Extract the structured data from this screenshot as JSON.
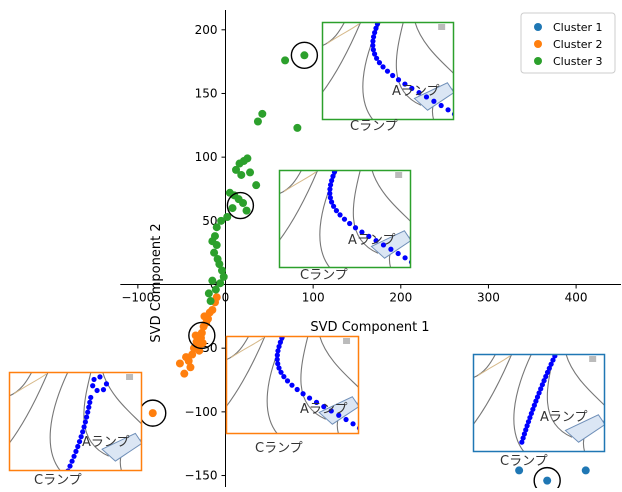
{
  "chart_data": {
    "type": "scatter",
    "xlabel": "SVD Component 1",
    "ylabel": "SVD Component 2",
    "xlim": [
      -120,
      445
    ],
    "ylim": [
      -160,
      212
    ],
    "x_ticks": [
      -100,
      0,
      100,
      200,
      300,
      400
    ],
    "y_ticks": [
      -150,
      -100,
      -50,
      0,
      50,
      100,
      150,
      200
    ],
    "x_tick_labels": [
      "−100",
      "0",
      "100",
      "200",
      "300",
      "400"
    ],
    "y_tick_labels": [
      "−150",
      "−100",
      "−50",
      "0",
      "50",
      "100",
      "150",
      "200"
    ],
    "grid": false,
    "legend_position": "top-right",
    "series": [
      {
        "name": "Cluster 1",
        "color": "#1f77b4",
        "points": [
          [
            367,
            -154
          ],
          [
            411,
            -146
          ],
          [
            335,
            -146
          ]
        ]
      },
      {
        "name": "Cluster 2",
        "color": "#ff7f0e",
        "points": [
          [
            -83,
            -101
          ],
          [
            -52,
            -62
          ],
          [
            -47,
            -70
          ],
          [
            -42,
            -60
          ],
          [
            -40,
            -65
          ],
          [
            -45,
            -57
          ],
          [
            -38,
            -55
          ],
          [
            -36,
            -50
          ],
          [
            -33,
            -45
          ],
          [
            -30,
            -48
          ],
          [
            -28,
            -42
          ],
          [
            -27,
            -38
          ],
          [
            -34,
            -40
          ],
          [
            -25,
            -33
          ],
          [
            -22,
            -30
          ],
          [
            -20,
            -27
          ],
          [
            -24,
            -25
          ],
          [
            -18,
            -22
          ],
          [
            -15,
            -20
          ],
          [
            -12,
            -14
          ],
          [
            -10,
            -10
          ],
          [
            -30,
            -52
          ],
          [
            -26,
            -46
          ]
        ]
      },
      {
        "name": "Cluster 3",
        "color": "#2ca02c",
        "points": [
          [
            90,
            180
          ],
          [
            68,
            176
          ],
          [
            42,
            134
          ],
          [
            37,
            128
          ],
          [
            82,
            123
          ],
          [
            16,
            95
          ],
          [
            21,
            97
          ],
          [
            25,
            99
          ],
          [
            12,
            90
          ],
          [
            18,
            86
          ],
          [
            28,
            88
          ],
          [
            35,
            78
          ],
          [
            5,
            72
          ],
          [
            10,
            70
          ],
          [
            15,
            67
          ],
          [
            20,
            64
          ],
          [
            24,
            58
          ],
          [
            8,
            60
          ],
          [
            2,
            53
          ],
          [
            -5,
            50
          ],
          [
            -10,
            45
          ],
          [
            -12,
            38
          ],
          [
            -15,
            34
          ],
          [
            -10,
            31
          ],
          [
            -13,
            25
          ],
          [
            -9,
            20
          ],
          [
            -7,
            16
          ],
          [
            -4,
            11
          ],
          [
            -2,
            6
          ],
          [
            -15,
            3
          ],
          [
            -19,
            -7
          ],
          [
            -17,
            -13
          ],
          [
            -11,
            -4
          ],
          [
            -6,
            1
          ]
        ]
      }
    ],
    "highlight_circles": [
      [
        90,
        180
      ],
      [
        17,
        62
      ],
      [
        -27,
        -40
      ],
      [
        -83,
        -101
      ],
      [
        367,
        -154
      ]
    ],
    "insets": [
      {
        "id": "inset-c3-top",
        "border": "#2ca02c",
        "label_a": "Aランプ",
        "label_c": "Cランプ"
      },
      {
        "id": "inset-c3-mid",
        "border": "#2ca02c",
        "label_a": "Aランプ",
        "label_c": "Cランプ"
      },
      {
        "id": "inset-c2-mid",
        "border": "#ff7f0e",
        "label_a": "Aランプ",
        "label_c": "Cランプ"
      },
      {
        "id": "inset-c2-left",
        "border": "#ff7f0e",
        "label_a": "Aランプ",
        "label_c": "Cランプ"
      },
      {
        "id": "inset-c1-right",
        "border": "#1f77b4",
        "label_a": "Aランプ",
        "label_c": "Cランプ"
      }
    ]
  }
}
